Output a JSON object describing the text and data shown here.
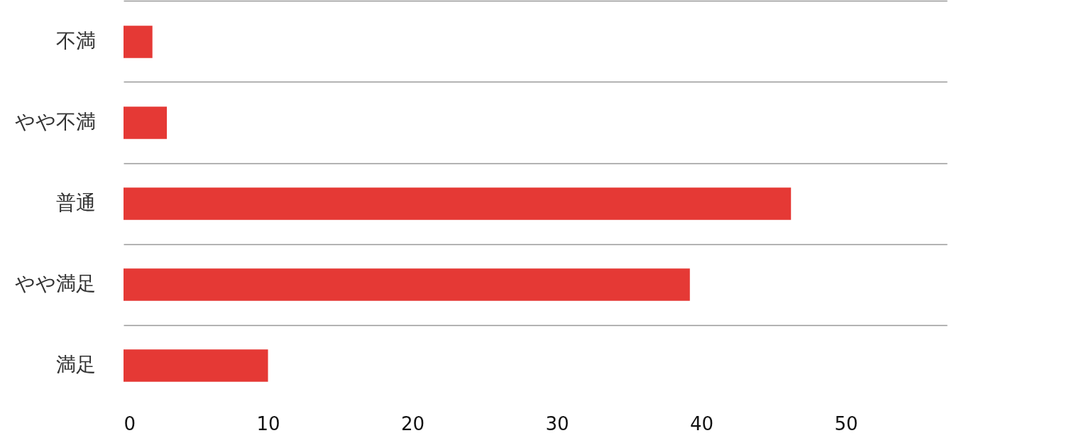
{
  "chart_data": {
    "type": "bar",
    "orientation": "horizontal",
    "categories": [
      "不満",
      "やや不満",
      "普通",
      "やや満足",
      "満足"
    ],
    "values": [
      2,
      3,
      46.2,
      39.2,
      10
    ],
    "color": "#e53935",
    "xlim": [
      0,
      57
    ],
    "xticks": [
      0,
      10,
      20,
      30,
      40,
      50
    ],
    "grid": "y"
  }
}
